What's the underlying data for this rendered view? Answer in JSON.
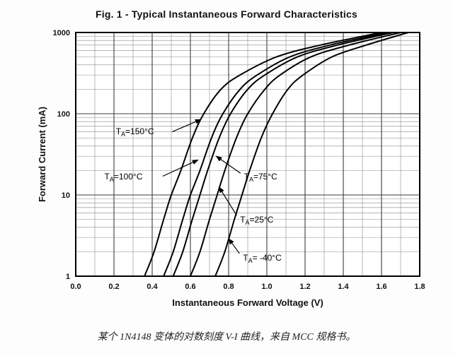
{
  "caption": {
    "text": "某个 1N4148 变体的对数刻度 V-I 曲线，来自 MCC 规格书。"
  },
  "chart_data": {
    "type": "line",
    "title": "Fig. 1 - Typical Instantaneous Forward Characteristics",
    "xlabel": "Instantaneous Forward Voltage (V)",
    "ylabel": "Forward Current (mA)",
    "xlim": [
      0,
      1.8
    ],
    "x_major_step": 0.2,
    "x_minor_step": 0.1,
    "xtick_labels": [
      "0.0",
      "0.2",
      "0.4",
      "0.6",
      "0.8",
      "1.0",
      "1.2",
      "1.4",
      "1.6",
      "1.8"
    ],
    "yscale": "log",
    "ylim": [
      1,
      1000
    ],
    "ytick_values": [
      1,
      10,
      100,
      1000
    ],
    "ytick_labels": [
      "1",
      "10",
      "100",
      "1000"
    ],
    "grid": true,
    "legend": "none (curves labeled with arrows)",
    "series": [
      {
        "name": "TA=150C",
        "temperature_c": 150,
        "points": [
          [
            0.36,
            1
          ],
          [
            0.41,
            2
          ],
          [
            0.46,
            5
          ],
          [
            0.5,
            10
          ],
          [
            0.55,
            20
          ],
          [
            0.61,
            50
          ],
          [
            0.67,
            100
          ],
          [
            0.76,
            200
          ],
          [
            0.86,
            300
          ],
          [
            1.05,
            500
          ],
          [
            1.28,
            700
          ],
          [
            1.6,
            1000
          ]
        ]
      },
      {
        "name": "TA=100C",
        "temperature_c": 100,
        "points": [
          [
            0.46,
            1
          ],
          [
            0.51,
            2
          ],
          [
            0.56,
            5
          ],
          [
            0.6,
            10
          ],
          [
            0.65,
            20
          ],
          [
            0.71,
            50
          ],
          [
            0.77,
            100
          ],
          [
            0.86,
            200
          ],
          [
            0.95,
            300
          ],
          [
            1.12,
            500
          ],
          [
            1.33,
            700
          ],
          [
            1.63,
            1000
          ]
        ]
      },
      {
        "name": "TA=75C",
        "temperature_c": 75,
        "points": [
          [
            0.51,
            1
          ],
          [
            0.56,
            2
          ],
          [
            0.61,
            5
          ],
          [
            0.65,
            10
          ],
          [
            0.69,
            20
          ],
          [
            0.75,
            50
          ],
          [
            0.81,
            100
          ],
          [
            0.9,
            200
          ],
          [
            0.99,
            300
          ],
          [
            1.16,
            500
          ],
          [
            1.37,
            700
          ],
          [
            1.66,
            1000
          ]
        ]
      },
      {
        "name": "TA=25C",
        "temperature_c": 25,
        "points": [
          [
            0.6,
            1
          ],
          [
            0.65,
            2
          ],
          [
            0.7,
            5
          ],
          [
            0.74,
            10
          ],
          [
            0.78,
            20
          ],
          [
            0.84,
            50
          ],
          [
            0.9,
            100
          ],
          [
            0.99,
            200
          ],
          [
            1.07,
            300
          ],
          [
            1.23,
            500
          ],
          [
            1.43,
            700
          ],
          [
            1.7,
            1000
          ]
        ]
      },
      {
        "name": "TA=-40C",
        "temperature_c": -40,
        "points": [
          [
            0.73,
            1
          ],
          [
            0.78,
            2
          ],
          [
            0.83,
            5
          ],
          [
            0.87,
            10
          ],
          [
            0.91,
            20
          ],
          [
            0.97,
            50
          ],
          [
            1.03,
            100
          ],
          [
            1.11,
            200
          ],
          [
            1.19,
            300
          ],
          [
            1.34,
            500
          ],
          [
            1.52,
            700
          ],
          [
            1.74,
            1000
          ]
        ]
      }
    ],
    "annotations": [
      {
        "pre": "T",
        "sub": "A",
        "post": "=150°C",
        "text_pos": [
          0.21,
          56
        ],
        "anchor": "start",
        "arrow_from": [
          0.505,
          60
        ],
        "arrow_to": [
          0.655,
          85
        ]
      },
      {
        "pre": "T",
        "sub": "A",
        "post": "=100°C",
        "text_pos": [
          0.15,
          15.5
        ],
        "anchor": "start",
        "arrow_from": [
          0.455,
          17
        ],
        "arrow_to": [
          0.64,
          27
        ]
      },
      {
        "pre": "T",
        "sub": "A",
        "post": "=75°C",
        "text_pos": [
          0.88,
          15.5
        ],
        "anchor": "start",
        "arrow_from": [
          0.862,
          18.5
        ],
        "arrow_to": [
          0.735,
          30
        ]
      },
      {
        "pre": "T",
        "sub": "A",
        "post": "=25°C",
        "text_pos": [
          0.86,
          4.6
        ],
        "anchor": "start",
        "arrow_from": [
          0.842,
          5.6
        ],
        "arrow_to": [
          0.75,
          12.5
        ]
      },
      {
        "pre": "T",
        "sub": "A",
        "post": "= -40°C",
        "text_pos": [
          0.875,
          1.55
        ],
        "anchor": "start",
        "arrow_from": [
          0.857,
          1.9
        ],
        "arrow_to": [
          0.8,
          2.9
        ]
      }
    ],
    "colors": {
      "curve": "#000000",
      "grid_major": "#3c3c3c",
      "grid_minor": "#8a8a8a",
      "frame": "#000000",
      "background": "#ffffff"
    }
  }
}
